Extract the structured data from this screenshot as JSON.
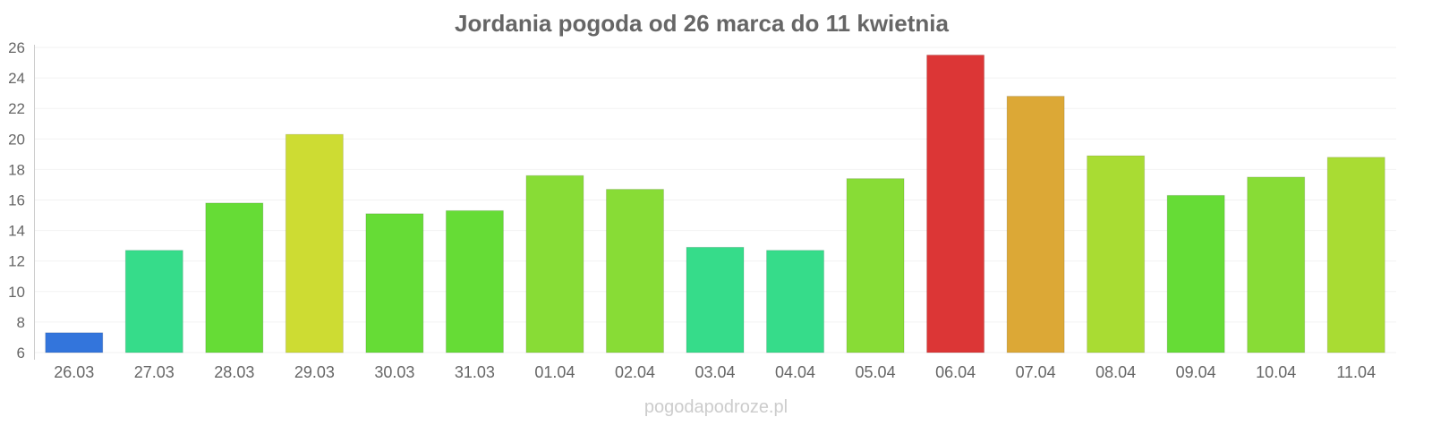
{
  "chart_data": {
    "type": "bar",
    "title": "Jordania pogoda od 26 marca do 11 kwietnia",
    "xlabel": "",
    "ylabel": "",
    "ylim": [
      6,
      26
    ],
    "yticks": [
      6,
      8,
      10,
      12,
      14,
      16,
      18,
      20,
      22,
      24,
      26
    ],
    "grid": true,
    "categories": [
      "26.03",
      "27.03",
      "28.03",
      "29.03",
      "30.03",
      "31.03",
      "01.04",
      "02.04",
      "03.04",
      "04.04",
      "05.04",
      "06.04",
      "07.04",
      "08.04",
      "09.04",
      "10.04",
      "11.04"
    ],
    "values": [
      7.3,
      12.7,
      15.8,
      20.3,
      15.1,
      15.3,
      17.6,
      16.7,
      12.9,
      12.7,
      17.4,
      25.5,
      22.8,
      18.9,
      16.3,
      17.5,
      18.8
    ],
    "colors": [
      "#3375dc",
      "#36dc8a",
      "#66dc36",
      "#cddc33",
      "#66dc36",
      "#66dc36",
      "#88dc36",
      "#88dc36",
      "#36dc8a",
      "#36dc8a",
      "#88dc36",
      "#dc3636",
      "#dca836",
      "#a9dc33",
      "#66dc36",
      "#88dc36",
      "#a9dc33"
    ],
    "watermark": "pogodapodroze.pl"
  }
}
